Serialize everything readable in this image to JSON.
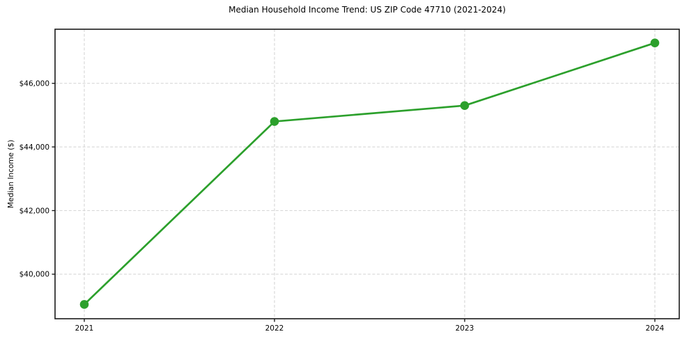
{
  "page": {
    "title": "Median Household Income Trend: US ZIP Code 47710 (2021-2024)"
  },
  "chart_data": {
    "type": "line",
    "title": "Median Household Income Trend: US ZIP Code 47710 (2021-2024)",
    "xlabel": "",
    "ylabel": "Median Income ($)",
    "categories": [
      "2021",
      "2022",
      "2023",
      "2024"
    ],
    "series": [
      {
        "name": "Median Household Income",
        "values": [
          39050,
          44800,
          45300,
          47270
        ]
      }
    ],
    "y_ticks": [
      {
        "value": 40000,
        "label": "$40,000"
      },
      {
        "value": 42000,
        "label": "$42,000"
      },
      {
        "value": 44000,
        "label": "$44,000"
      },
      {
        "value": 46000,
        "label": "$46,000"
      }
    ],
    "ylim": [
      38600,
      47700
    ],
    "grid": "dashed-both-axes",
    "legend": "none",
    "marker": "circle",
    "colors": {
      "line": "#2ca02c",
      "marker": "#2ca02c",
      "grid": "#d2d2d2",
      "axis": "#1a1a1a",
      "text": "#000000",
      "background": "#ffffff"
    }
  }
}
